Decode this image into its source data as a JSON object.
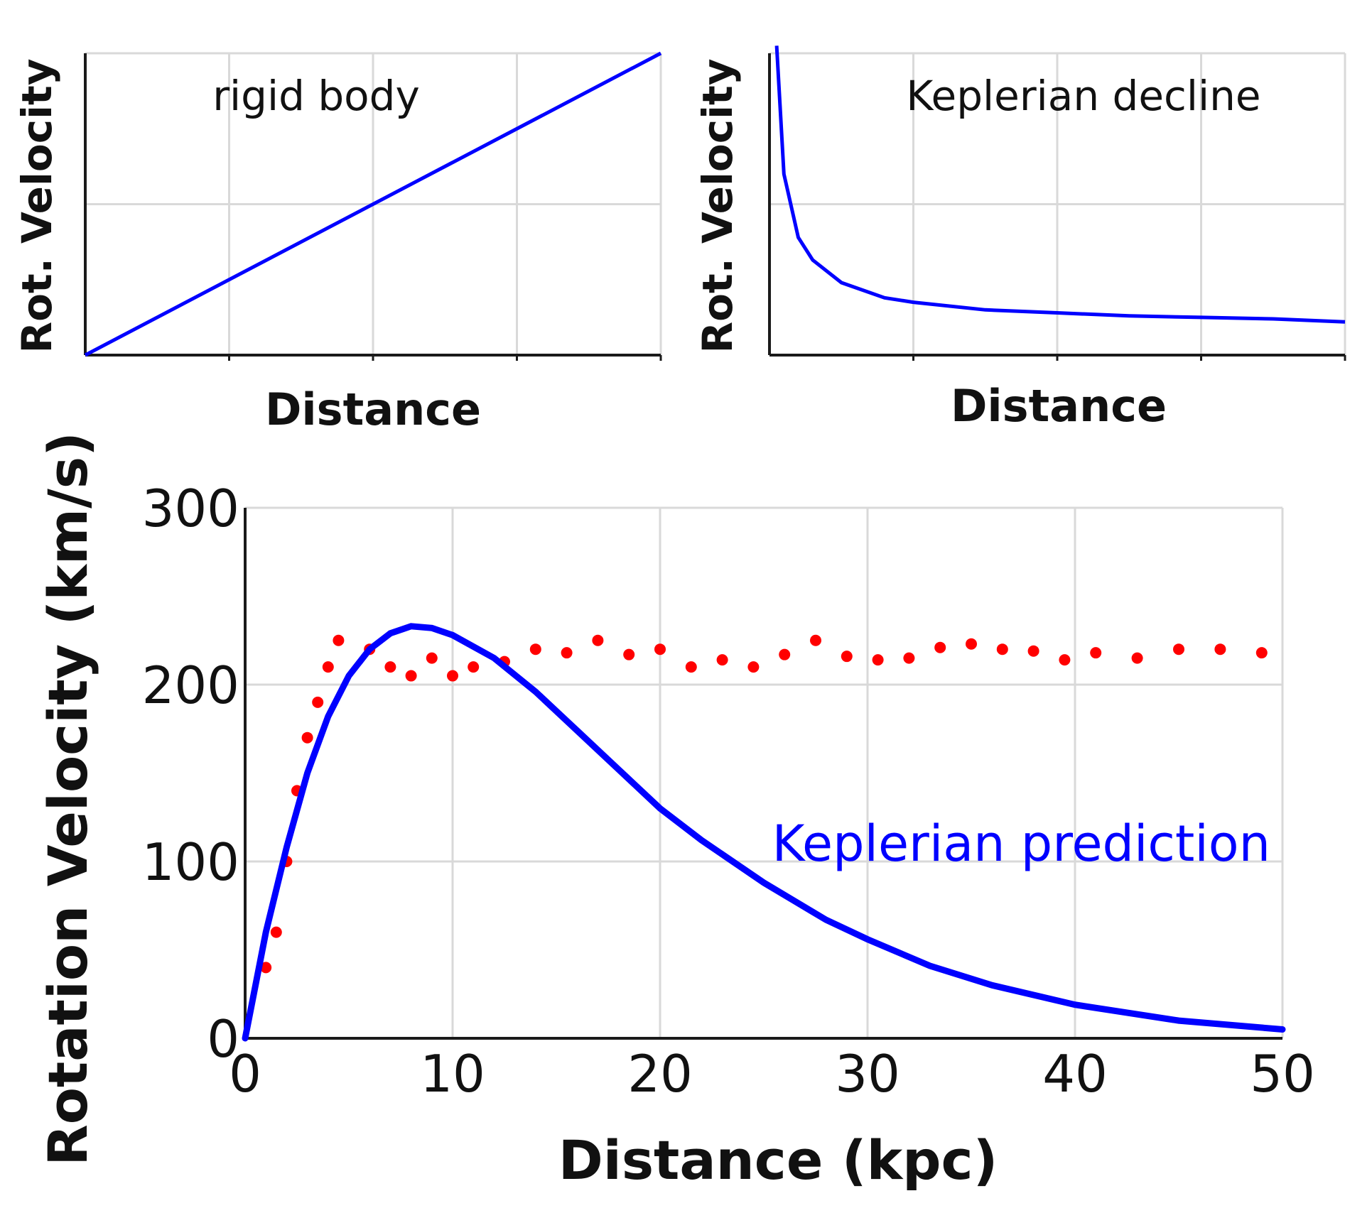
{
  "chart_data": [
    {
      "type": "line",
      "annotation": "rigid body",
      "xlabel": "Distance",
      "ylabel": "Rot. Velocity",
      "grid": true,
      "xlim": [
        0,
        4
      ],
      "ylim": [
        0,
        2
      ],
      "series": [
        {
          "x": [
            0,
            4
          ],
          "y": [
            0,
            2
          ]
        }
      ]
    },
    {
      "type": "line",
      "annotation": "Keplerian decline",
      "xlabel": "Distance",
      "ylabel": "Rot. Velocity",
      "grid": true,
      "xlim": [
        0,
        4
      ],
      "ylim": [
        0,
        2
      ],
      "series": [
        {
          "x": [
            0.05,
            0.1,
            0.2,
            0.3,
            0.5,
            0.8,
            1.0,
            1.5,
            2.0,
            2.5,
            3.0,
            3.5,
            4.0
          ],
          "y": [
            2.05,
            1.2,
            0.78,
            0.63,
            0.48,
            0.38,
            0.35,
            0.3,
            0.28,
            0.26,
            0.25,
            0.24,
            0.22
          ]
        }
      ]
    },
    {
      "type": "scatter",
      "xlabel": "Distance (kpc)",
      "ylabel": "Rotation Velocity (km/s)",
      "grid": true,
      "xlim": [
        0,
        50
      ],
      "ylim": [
        0,
        300
      ],
      "xticks": [
        "0",
        "10",
        "20",
        "30",
        "40",
        "50"
      ],
      "yticks": [
        "0",
        "100",
        "200",
        "300"
      ],
      "series": [
        {
          "type": "scatter",
          "color": "#ff0000",
          "x": [
            1.0,
            1.5,
            2.0,
            2.5,
            3.0,
            3.5,
            4.0,
            4.5,
            6.0,
            7.0,
            8.0,
            9.0,
            10.0,
            11.0,
            12.5,
            14.0,
            15.5,
            17.0,
            18.5,
            20.0,
            21.5,
            23.0,
            24.5,
            26.0,
            27.5,
            29.0,
            30.5,
            32.0,
            33.5,
            35.0,
            36.5,
            38.0,
            39.5,
            41.0,
            43.0,
            45.0,
            47.0,
            49.0
          ],
          "y": [
            40,
            60,
            100,
            140,
            170,
            190,
            210,
            225,
            220,
            210,
            205,
            215,
            205,
            210,
            213,
            220,
            218,
            225,
            217,
            220,
            210,
            214,
            210,
            217,
            225,
            216,
            214,
            215,
            221,
            223,
            220,
            219,
            214,
            218,
            215,
            220,
            220,
            218
          ]
        },
        {
          "type": "line",
          "name": "Keplerian prediction",
          "color": "#0000ff",
          "x": [
            0,
            1,
            2,
            3,
            4,
            5,
            6,
            7,
            8,
            9,
            10,
            12,
            14,
            16,
            18,
            20,
            22,
            25,
            28,
            30,
            33,
            36,
            40,
            45,
            50
          ],
          "y": [
            0,
            60,
            108,
            150,
            182,
            205,
            220,
            229,
            233,
            232,
            228,
            215,
            196,
            174,
            152,
            130,
            112,
            88,
            67,
            56,
            41,
            30,
            19,
            10,
            5
          ]
        }
      ]
    }
  ]
}
